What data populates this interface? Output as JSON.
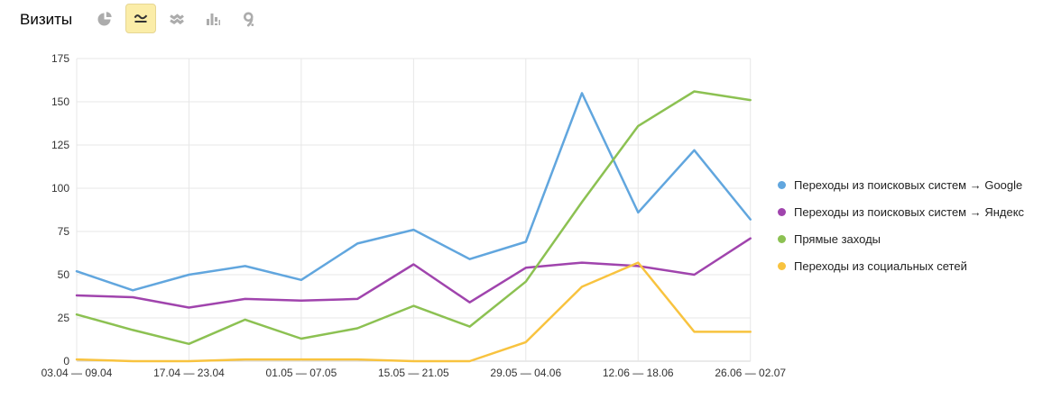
{
  "header": {
    "title": "Визиты"
  },
  "toolbar": {
    "tools": [
      {
        "icon": "pie-chart-icon",
        "selected": false
      },
      {
        "icon": "line-chart-icon",
        "selected": true
      },
      {
        "icon": "stacked-area-chart-icon",
        "selected": false
      },
      {
        "icon": "bar-chart-icon",
        "selected": false
      },
      {
        "icon": "map-pin-icon",
        "selected": false
      }
    ]
  },
  "chart_data": {
    "type": "line",
    "title": "Визиты",
    "n_points": 13,
    "x_tick_labels": [
      "03.04 — 09.04",
      "17.04 — 23.04",
      "01.05 — 07.05",
      "15.05 — 21.05",
      "29.05 — 04.06",
      "12.06 — 18.06",
      "26.06 — 02.07"
    ],
    "x_tick_point_indices": [
      0,
      2,
      4,
      6,
      8,
      10,
      12
    ],
    "xlabel": "",
    "ylabel": "",
    "ylim": [
      0,
      175
    ],
    "y_ticks": [
      0,
      25,
      50,
      75,
      100,
      125,
      150,
      175
    ],
    "grid": true,
    "legend_position": "right",
    "series": [
      {
        "name": "Переходы из поисковых систем → Google",
        "color": "#61A6DE",
        "values": [
          52,
          41,
          50,
          55,
          47,
          68,
          76,
          59,
          69,
          155,
          86,
          122,
          82
        ]
      },
      {
        "name": "Переходы из поисковых систем → Яндекс",
        "color": "#A044AD",
        "values": [
          38,
          37,
          31,
          36,
          35,
          36,
          56,
          34,
          54,
          57,
          55,
          50,
          71
        ]
      },
      {
        "name": "Прямые заходы",
        "color": "#8CC152",
        "values": [
          27,
          18,
          10,
          24,
          13,
          19,
          32,
          20,
          46,
          92,
          136,
          156,
          151
        ]
      },
      {
        "name": "Переходы из социальных сетей",
        "color": "#F8C33F",
        "values": [
          1,
          0,
          0,
          1,
          1,
          1,
          0,
          0,
          11,
          43,
          57,
          17,
          17
        ]
      }
    ],
    "colors": {
      "grid_line": "#E7E7E7",
      "axis_line": "#D5D5D5",
      "tick_text": "#333333",
      "selected_tool_bg": "#FBEDA8",
      "tool_icon_gray": "#ACACAC",
      "tool_icon_dark": "#333333"
    }
  }
}
